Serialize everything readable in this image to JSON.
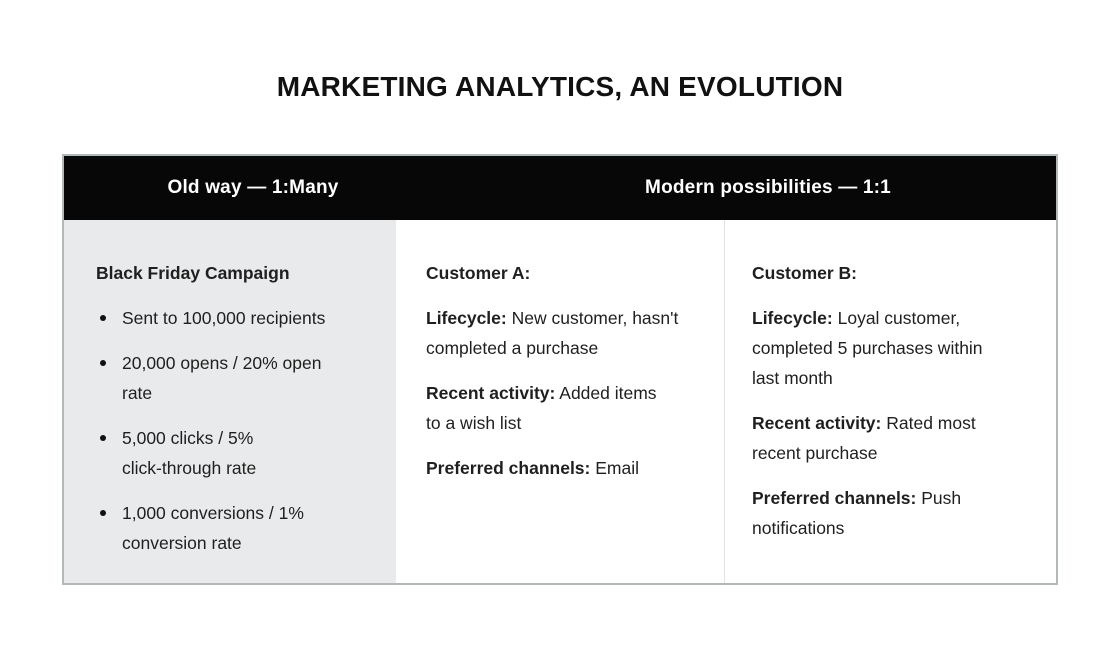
{
  "page": {
    "title": "MARKETING ANALYTICS, AN EVOLUTION"
  },
  "table": {
    "header": {
      "old_way": "Old way — 1:Many",
      "modern": "Modern possibilities — 1:1"
    },
    "campaign": {
      "heading": "Black Friday Campaign",
      "bullets": [
        "Sent to 100,000 recipients",
        "20,000 opens / 20% open\nrate",
        "5,000 clicks / 5%\nclick-through rate",
        "1,000 conversions / 1%\nconversion rate"
      ]
    },
    "customer_a": {
      "heading": "Customer A:",
      "fields": [
        {
          "label": "Lifecycle:",
          "value": "New customer, hasn't\ncompleted a purchase"
        },
        {
          "label": "Recent activity:",
          "value": "Added items\nto a wish list"
        },
        {
          "label": "Preferred channels:",
          "value": "Email"
        }
      ]
    },
    "customer_b": {
      "heading": "Customer B:",
      "fields": [
        {
          "label": "Lifecycle:",
          "value": "Loyal customer,\ncompleted 5 purchases within\nlast month"
        },
        {
          "label": "Recent activity:",
          "value": "Rated most\nrecent purchase"
        },
        {
          "label": "Preferred channels:",
          "value": "Push\nnotifications"
        }
      ]
    },
    "colors": {
      "header_bg": "#070707",
      "header_text": "#ffffff",
      "campaign_bg": "#e9eaeb",
      "body_text": "#1f1f1f",
      "outer_border": "#b2b8ba",
      "column_divider": "#e2e2e2"
    }
  }
}
